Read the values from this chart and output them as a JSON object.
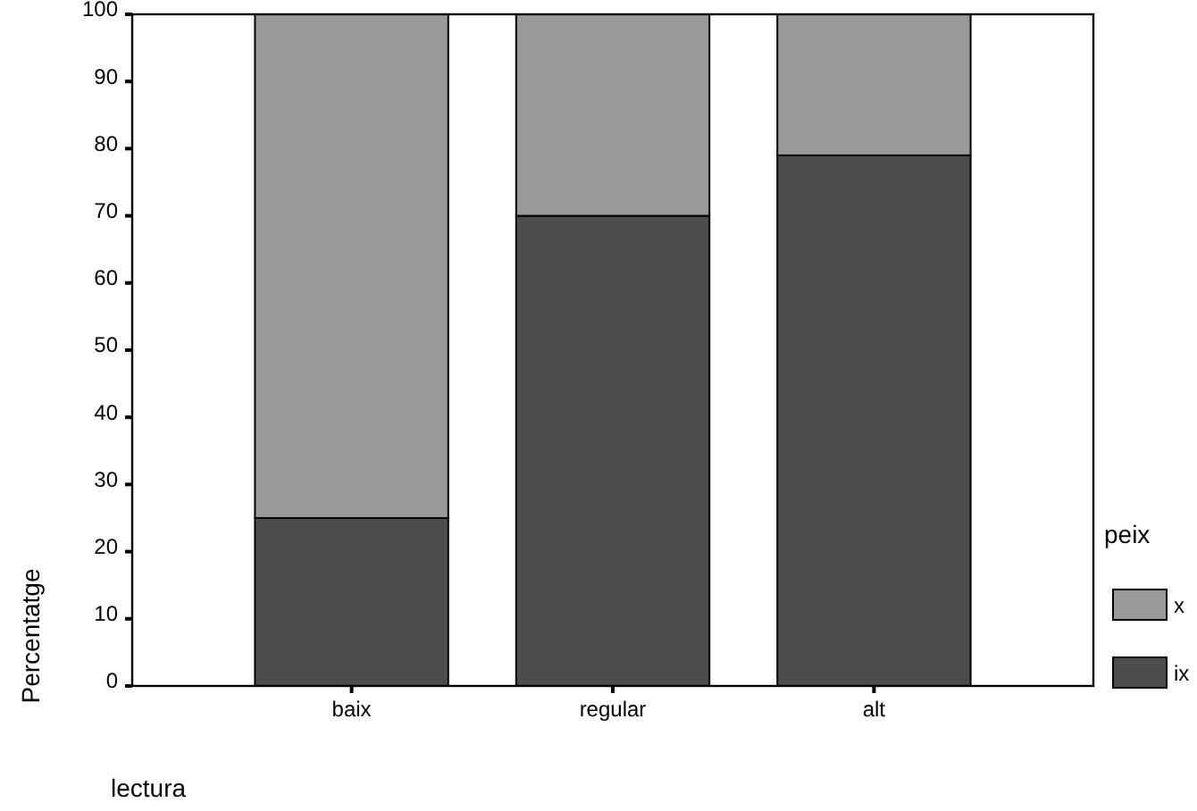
{
  "chart_data": {
    "type": "bar",
    "stacked": true,
    "xlabel": "lectura",
    "ylabel": "Percentatge",
    "legend_title": "peix",
    "categories": [
      "baix",
      "regular",
      "alt"
    ],
    "series": [
      {
        "name": "ix",
        "color": "#4d4d4d",
        "values": [
          25,
          70,
          79
        ]
      },
      {
        "name": "x",
        "color": "#999999",
        "values": [
          75,
          30,
          21
        ]
      }
    ],
    "ylim": [
      0,
      100
    ],
    "yticks": [
      0,
      10,
      20,
      30,
      40,
      50,
      60,
      70,
      80,
      90,
      100
    ],
    "legend": "right",
    "grid": false
  }
}
